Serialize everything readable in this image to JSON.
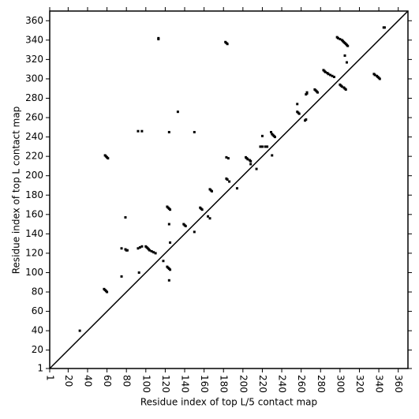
{
  "chart_data": {
    "type": "scatter",
    "xlabel": "Residue index of top L/5 contact map",
    "ylabel": "Residue index of top L contact map",
    "color": "#000000",
    "xlim": [
      1,
      370
    ],
    "ylim": [
      1,
      370
    ],
    "xticks": [
      1,
      20,
      40,
      60,
      80,
      100,
      120,
      140,
      160,
      180,
      200,
      220,
      240,
      260,
      280,
      300,
      320,
      340,
      360
    ],
    "yticks": [
      1,
      20,
      40,
      60,
      80,
      100,
      120,
      140,
      160,
      180,
      200,
      220,
      240,
      260,
      280,
      300,
      320,
      340,
      360
    ],
    "x": [
      58,
      59,
      60,
      61,
      57,
      58,
      59,
      60,
      32,
      75,
      79,
      79,
      80,
      81,
      75,
      92,
      96,
      93,
      92,
      94,
      96,
      100,
      101,
      102,
      103,
      104,
      106,
      108,
      110,
      113,
      113,
      118,
      122,
      123,
      124,
      125,
      124,
      122,
      123,
      124,
      125,
      124,
      124,
      125,
      133,
      139,
      140,
      141,
      150,
      150,
      156,
      157,
      158,
      164,
      166,
      166,
      167,
      168,
      182,
      183,
      184,
      183,
      184,
      186,
      183,
      185,
      194,
      203,
      204,
      205,
      207,
      208,
      214,
      218,
      220,
      223,
      225,
      220,
      229,
      230,
      231,
      232,
      233,
      230,
      256,
      256,
      257,
      258,
      265,
      266,
      266,
      264,
      265,
      274,
      275,
      276,
      277,
      283,
      284,
      285,
      287,
      288,
      290,
      292,
      294,
      297,
      298,
      300,
      302,
      303,
      304,
      305,
      306,
      307,
      308,
      300,
      301,
      302,
      304,
      305,
      306,
      305,
      307,
      335,
      336,
      338,
      339,
      340,
      341,
      345,
      346,
      208
    ],
    "values": [
      221,
      220,
      219,
      218,
      83,
      82,
      81,
      80,
      40,
      96,
      157,
      124,
      123,
      123,
      125,
      246,
      246,
      100,
      125,
      126,
      127,
      127,
      126,
      125,
      124,
      123,
      122,
      121,
      120,
      341,
      342,
      112,
      168,
      167,
      166,
      165,
      245,
      106,
      105,
      104,
      103,
      92,
      150,
      131,
      266,
      150,
      149,
      148,
      245,
      142,
      167,
      166,
      165,
      158,
      156,
      186,
      185,
      184,
      338,
      337,
      336,
      197,
      196,
      194,
      219,
      218,
      187,
      219,
      218,
      217,
      216,
      215,
      207,
      230,
      230,
      230,
      230,
      241,
      245,
      243,
      242,
      241,
      240,
      221,
      274,
      266,
      265,
      264,
      284,
      285,
      286,
      257,
      258,
      289,
      288,
      287,
      286,
      309,
      308,
      307,
      306,
      305,
      304,
      303,
      302,
      343,
      342,
      341,
      340,
      339,
      338,
      337,
      336,
      335,
      334,
      294,
      293,
      292,
      291,
      290,
      289,
      324,
      317,
      305,
      304,
      303,
      302,
      301,
      300,
      353,
      353,
      212
    ]
  }
}
